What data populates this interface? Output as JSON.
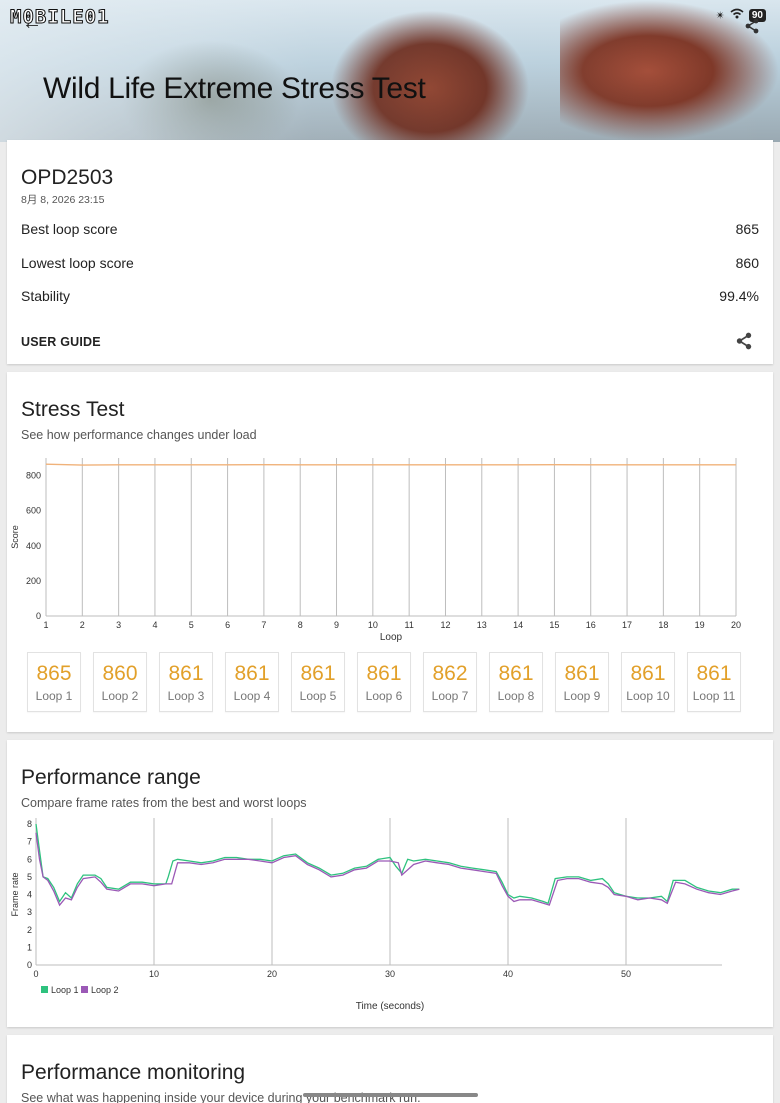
{
  "header": {
    "logo_text": "M0BILE01",
    "title": "Wild Life Extreme Stress Test",
    "battery": "90"
  },
  "summary": {
    "device": "OPD2503",
    "date": "8月 8, 2026 23:15",
    "rows": [
      {
        "label": "Best loop score",
        "value": "865"
      },
      {
        "label": "Lowest loop score",
        "value": "860"
      },
      {
        "label": "Stability",
        "value": "99.4%"
      }
    ],
    "guide_label": "USER GUIDE"
  },
  "stress": {
    "title": "Stress Test",
    "subtitle": "See how performance changes under load",
    "loop_cards": [
      {
        "value": "865",
        "label": "Loop 1"
      },
      {
        "value": "860",
        "label": "Loop 2"
      },
      {
        "value": "861",
        "label": "Loop 3"
      },
      {
        "value": "861",
        "label": "Loop 4"
      },
      {
        "value": "861",
        "label": "Loop 5"
      },
      {
        "value": "861",
        "label": "Loop 6"
      },
      {
        "value": "862",
        "label": "Loop 7"
      },
      {
        "value": "861",
        "label": "Loop 8"
      },
      {
        "value": "861",
        "label": "Loop 9"
      },
      {
        "value": "861",
        "label": "Loop 10"
      },
      {
        "value": "861",
        "label": "Loop 11"
      }
    ]
  },
  "perf": {
    "title": "Performance range",
    "subtitle": "Compare frame rates from the best and worst loops"
  },
  "monitor": {
    "title": "Performance monitoring",
    "subtitle": "See what was happening inside your device during your benchmark run."
  },
  "chart_data": [
    {
      "type": "line",
      "xlabel": "Loop",
      "ylabel": "Score",
      "x": [
        1,
        2,
        3,
        4,
        5,
        6,
        7,
        8,
        9,
        10,
        11,
        12,
        13,
        14,
        15,
        16,
        17,
        18,
        19,
        20
      ],
      "xlim": [
        1,
        20
      ],
      "ylim": [
        0,
        900
      ],
      "yticks": [
        0,
        200,
        400,
        600,
        800
      ],
      "grid": "vertical",
      "series": [
        {
          "values": [
            865,
            860,
            861,
            861,
            861,
            861,
            862,
            861,
            861,
            861,
            861,
            861,
            861,
            861,
            862,
            861,
            861,
            861,
            861,
            861
          ],
          "color": "#f0b27a"
        }
      ]
    },
    {
      "type": "line",
      "xlabel": "Time (seconds)",
      "ylabel": "Frame rate",
      "xlim": [
        0,
        60
      ],
      "ylim": [
        0,
        8
      ],
      "xticks": [
        0,
        10,
        20,
        30,
        40,
        50
      ],
      "yticks": [
        0,
        1,
        2,
        3,
        4,
        5,
        6,
        7,
        8
      ],
      "legend": "bottom-left",
      "series": [
        {
          "name": "Loop 1",
          "color": "#2ec27e",
          "points": [
            [
              0,
              8
            ],
            [
              0.3,
              6.5
            ],
            [
              0.6,
              5
            ],
            [
              1,
              4.9
            ],
            [
              1.5,
              4.4
            ],
            [
              2,
              3.6
            ],
            [
              2.5,
              4.1
            ],
            [
              3,
              3.8
            ],
            [
              3.5,
              4.6
            ],
            [
              4,
              5.1
            ],
            [
              5,
              5.1
            ],
            [
              5.5,
              4.9
            ],
            [
              6,
              4.4
            ],
            [
              7,
              4.3
            ],
            [
              8,
              4.7
            ],
            [
              9,
              4.7
            ],
            [
              10,
              4.6
            ],
            [
              11,
              4.6
            ],
            [
              11.2,
              5
            ],
            [
              11.6,
              5.9
            ],
            [
              12,
              6
            ],
            [
              13,
              5.9
            ],
            [
              14,
              5.8
            ],
            [
              15,
              5.9
            ],
            [
              16,
              6.1
            ],
            [
              17,
              6.1
            ],
            [
              18,
              6
            ],
            [
              19,
              6
            ],
            [
              20,
              5.9
            ],
            [
              21,
              6.2
            ],
            [
              22,
              6.3
            ],
            [
              23,
              5.8
            ],
            [
              24,
              5.5
            ],
            [
              25,
              5.1
            ],
            [
              26,
              5.2
            ],
            [
              27,
              5.5
            ],
            [
              28,
              5.6
            ],
            [
              29,
              6
            ],
            [
              30,
              6.1
            ],
            [
              30.5,
              5.6
            ],
            [
              31,
              5.2
            ],
            [
              31.5,
              6
            ],
            [
              32,
              5.9
            ],
            [
              33,
              6
            ],
            [
              34,
              5.9
            ],
            [
              35,
              5.8
            ],
            [
              36,
              5.6
            ],
            [
              37,
              5.5
            ],
            [
              38,
              5.4
            ],
            [
              39,
              5.3
            ],
            [
              39.5,
              4.7
            ],
            [
              40,
              4
            ],
            [
              40.5,
              3.8
            ],
            [
              41,
              3.9
            ],
            [
              42,
              3.8
            ],
            [
              43,
              3.6
            ],
            [
              43.4,
              3.5
            ],
            [
              44,
              4.9
            ],
            [
              45,
              5
            ],
            [
              46,
              5
            ],
            [
              47,
              4.8
            ],
            [
              48,
              4.9
            ],
            [
              48.5,
              4.6
            ],
            [
              49,
              4.1
            ],
            [
              50,
              3.9
            ],
            [
              51,
              3.8
            ],
            [
              52,
              3.8
            ],
            [
              53,
              3.9
            ],
            [
              53.5,
              3.6
            ],
            [
              54,
              4.8
            ],
            [
              55,
              4.8
            ],
            [
              56,
              4.4
            ],
            [
              57,
              4.2
            ],
            [
              58,
              4.1
            ],
            [
              59,
              4.3
            ],
            [
              59.6,
              4.3
            ]
          ]
        },
        {
          "name": "Loop 2",
          "color": "#9b59b6",
          "points": [
            [
              0,
              7.5
            ],
            [
              0.3,
              6
            ],
            [
              0.6,
              5
            ],
            [
              1,
              4.8
            ],
            [
              1.5,
              4.2
            ],
            [
              2,
              3.4
            ],
            [
              2.5,
              3.8
            ],
            [
              3,
              3.7
            ],
            [
              3.5,
              4.4
            ],
            [
              4,
              4.9
            ],
            [
              5,
              5
            ],
            [
              5.5,
              4.7
            ],
            [
              6,
              4.3
            ],
            [
              7,
              4.2
            ],
            [
              8,
              4.6
            ],
            [
              9,
              4.6
            ],
            [
              10,
              4.5
            ],
            [
              11,
              4.6
            ],
            [
              11.5,
              4.6
            ],
            [
              12,
              5.8
            ],
            [
              13,
              5.8
            ],
            [
              14,
              5.7
            ],
            [
              15,
              5.8
            ],
            [
              16,
              6
            ],
            [
              17,
              6
            ],
            [
              18,
              6
            ],
            [
              19,
              5.9
            ],
            [
              20,
              5.8
            ],
            [
              21,
              6.1
            ],
            [
              22,
              6.2
            ],
            [
              23,
              5.7
            ],
            [
              24,
              5.4
            ],
            [
              25,
              5
            ],
            [
              26,
              5.1
            ],
            [
              27,
              5.4
            ],
            [
              28,
              5.5
            ],
            [
              29,
              5.9
            ],
            [
              30,
              5.9
            ],
            [
              30.7,
              5.8
            ],
            [
              31,
              5.1
            ],
            [
              32,
              5.7
            ],
            [
              33,
              5.9
            ],
            [
              34,
              5.8
            ],
            [
              35,
              5.7
            ],
            [
              36,
              5.5
            ],
            [
              37,
              5.4
            ],
            [
              38,
              5.3
            ],
            [
              39,
              5.2
            ],
            [
              39.5,
              4.5
            ],
            [
              40,
              3.9
            ],
            [
              40.5,
              3.6
            ],
            [
              41,
              3.7
            ],
            [
              42,
              3.7
            ],
            [
              43,
              3.5
            ],
            [
              43.5,
              3.4
            ],
            [
              44.2,
              4.8
            ],
            [
              45,
              4.9
            ],
            [
              46,
              4.9
            ],
            [
              47,
              4.7
            ],
            [
              48,
              4.6
            ],
            [
              48.5,
              4.4
            ],
            [
              49,
              4
            ],
            [
              50,
              3.9
            ],
            [
              51,
              3.7
            ],
            [
              52,
              3.8
            ],
            [
              53,
              3.7
            ],
            [
              53.5,
              3.5
            ],
            [
              54.2,
              4.7
            ],
            [
              55,
              4.6
            ],
            [
              56,
              4.3
            ],
            [
              57,
              4.1
            ],
            [
              58,
              4
            ],
            [
              59,
              4.2
            ],
            [
              59.6,
              4.3
            ]
          ]
        }
      ]
    }
  ]
}
